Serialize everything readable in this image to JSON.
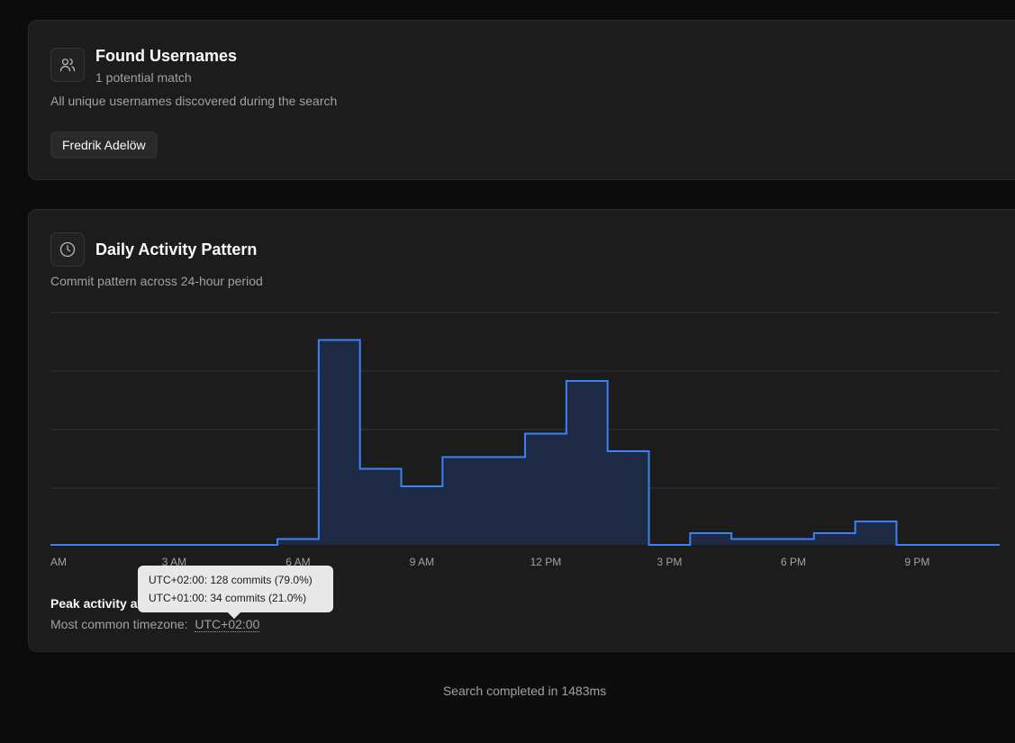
{
  "usernames_card": {
    "title": "Found Usernames",
    "count_text": "1 potential match",
    "description": "All unique usernames discovered during the search",
    "icon": "users-icon",
    "usernames": [
      "Fredrik Adelöw"
    ]
  },
  "activity_card": {
    "title": "Daily Activity Pattern",
    "description": "Commit pattern across 24-hour period",
    "icon": "clock-icon",
    "peak_label": "Peak activity at",
    "timezone_label": "Most common timezone:",
    "timezone_value": "UTC+02:00",
    "tooltip": {
      "lines": [
        "UTC+02:00: 128 commits (79.0%)",
        "UTC+01:00: 34 commits (21.0%)"
      ]
    }
  },
  "chart_data": {
    "type": "area",
    "step": true,
    "hours": [
      0,
      1,
      2,
      3,
      4,
      5,
      6,
      7,
      8,
      9,
      10,
      11,
      12,
      13,
      14,
      15,
      16,
      17,
      18,
      19,
      20,
      21,
      22,
      23
    ],
    "x_tick_labels": [
      "AM",
      "3 AM",
      "6 AM",
      "9 AM",
      "12 PM",
      "3 PM",
      "6 PM",
      "9 PM"
    ],
    "x_tick_hours": [
      0,
      3,
      6,
      9,
      12,
      15,
      18,
      21
    ],
    "values": [
      0,
      0,
      0,
      0,
      0,
      0,
      1,
      35,
      13,
      10,
      15,
      15,
      19,
      28,
      16,
      0,
      2,
      1,
      1,
      2,
      4,
      0,
      0,
      0
    ],
    "ylim": [
      0,
      40
    ],
    "grid": true,
    "line_color": "#3b82f6",
    "fill_color": "#1e2a44"
  },
  "footer": {
    "text": "Search completed in 1483ms"
  },
  "colors": {
    "background": "#0c0c0c",
    "card": "#1c1c1c",
    "accent": "#3b82f6"
  }
}
